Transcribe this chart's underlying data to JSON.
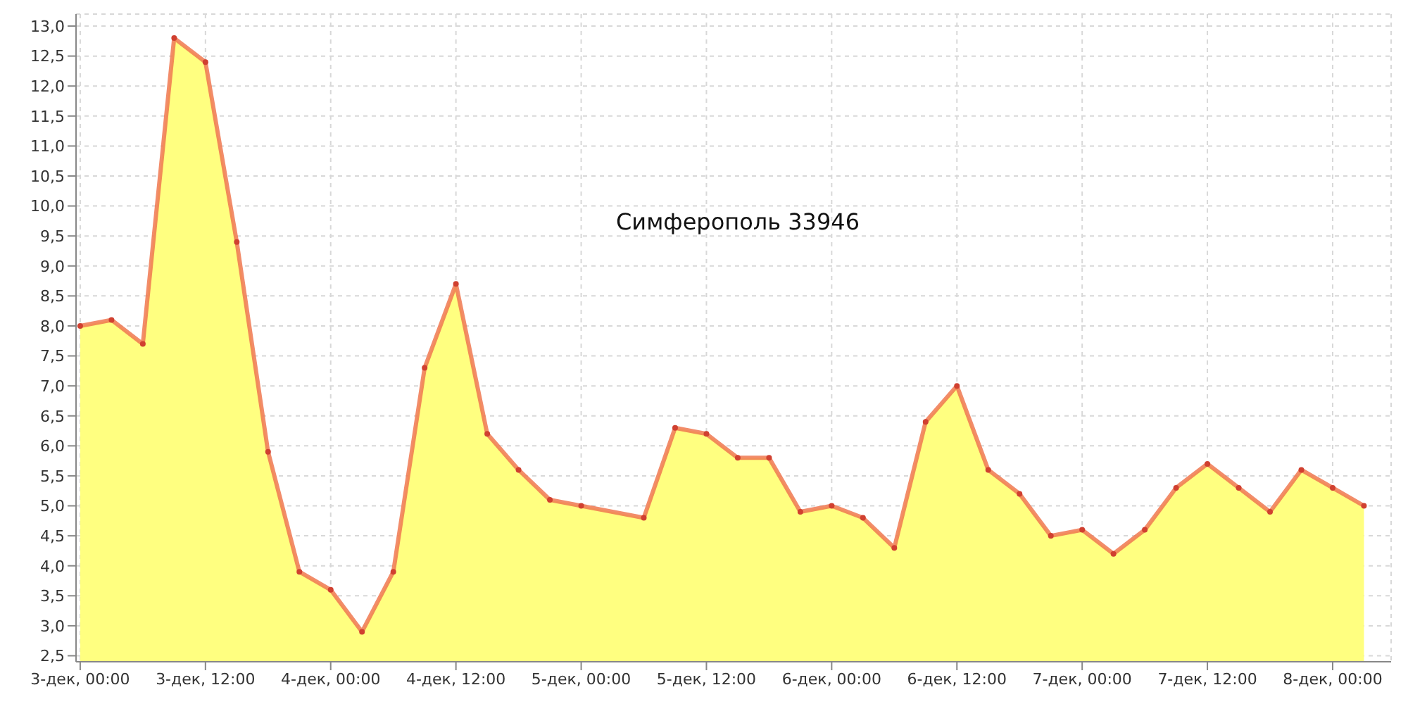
{
  "chart_data": {
    "type": "area",
    "title": "Симферополь 33946",
    "x": [
      "--12-03T00:00",
      "--12-03T03:00",
      "--12-03T06:00",
      "--12-03T09:00",
      "--12-03T12:00",
      "--12-03T15:00",
      "--12-03T18:00",
      "--12-03T21:00",
      "--12-04T00:00",
      "--12-04T03:00",
      "--12-04T06:00",
      "--12-04T09:00",
      "--12-04T12:00",
      "--12-04T15:00",
      "--12-04T18:00",
      "--12-04T21:00",
      "--12-05T00:00",
      "--12-05T06:00",
      "--12-05T09:00",
      "--12-05T12:00",
      "--12-05T15:00",
      "--12-05T18:00",
      "--12-05T21:00",
      "--12-06T00:00",
      "--12-06T03:00",
      "--12-06T06:00",
      "--12-06T09:00",
      "--12-06T12:00",
      "--12-06T15:00",
      "--12-06T18:00",
      "--12-06T21:00",
      "--12-07T00:00",
      "--12-07T03:00",
      "--12-07T06:00",
      "--12-07T09:00",
      "--12-07T12:00",
      "--12-07T15:00",
      "--12-07T18:00",
      "--12-07T21:00",
      "--12-08T00:00",
      "--12-08T03:00"
    ],
    "series": [
      {
        "color": "#f07850",
        "values": [
          8.0,
          8.1,
          7.7,
          12.8,
          12.4,
          9.4,
          5.9,
          3.9,
          3.6,
          2.9,
          3.9,
          7.3,
          8.7,
          6.2,
          5.6,
          5.1,
          5.0,
          4.8,
          6.3,
          6.2,
          5.8,
          5.8,
          4.9,
          5.0,
          4.8,
          4.3,
          6.4,
          7.0,
          5.6,
          5.2,
          4.5,
          4.6,
          4.2,
          4.6,
          5.3,
          5.7,
          5.3,
          4.9,
          5.6,
          5.3,
          5.0
        ]
      }
    ],
    "xlim": [
      "--12-02T23:36",
      "--12-08T05:36"
    ],
    "xticks": [
      {
        "value": "--12-03T00:00",
        "label": "3-дек, 00:00"
      },
      {
        "value": "--12-03T12:00",
        "label": "3-дек, 12:00"
      },
      {
        "value": "--12-04T00:00",
        "label": "4-дек, 00:00"
      },
      {
        "value": "--12-04T12:00",
        "label": "4-дек, 12:00"
      },
      {
        "value": "--12-05T00:00",
        "label": "5-дек, 00:00"
      },
      {
        "value": "--12-05T12:00",
        "label": "5-дек, 12:00"
      },
      {
        "value": "--12-06T00:00",
        "label": "6-дек, 00:00"
      },
      {
        "value": "--12-06T12:00",
        "label": "6-дек, 12:00"
      },
      {
        "value": "--12-07T00:00",
        "label": "7-дек, 00:00"
      },
      {
        "value": "--12-07T12:00",
        "label": "7-дек, 12:00"
      },
      {
        "value": "--12-08T00:00",
        "label": "8-дек, 00:00"
      }
    ],
    "ylim": [
      2.4,
      13.2
    ],
    "yticks": [
      {
        "value": 2.5,
        "label": "2,5"
      },
      {
        "value": 3,
        "label": "3,0"
      },
      {
        "value": 3.5,
        "label": "3,5"
      },
      {
        "value": 4,
        "label": "4,0"
      },
      {
        "value": 4.5,
        "label": "4,5"
      },
      {
        "value": 5,
        "label": "5,0"
      },
      {
        "value": 5.5,
        "label": "5,5"
      },
      {
        "value": 6,
        "label": "6,0"
      },
      {
        "value": 6.5,
        "label": "6,5"
      },
      {
        "value": 7,
        "label": "7,0"
      },
      {
        "value": 7.5,
        "label": "7,5"
      },
      {
        "value": 8,
        "label": "8,0"
      },
      {
        "value": 8.5,
        "label": "8,5"
      },
      {
        "value": 9,
        "label": "9,0"
      },
      {
        "value": 9.5,
        "label": "9,5"
      },
      {
        "value": 10,
        "label": "10,0"
      },
      {
        "value": 10.5,
        "label": "10,5"
      },
      {
        "value": 11,
        "label": "11,0"
      },
      {
        "value": 11.5,
        "label": "11,5"
      },
      {
        "value": 12,
        "label": "12,0"
      },
      {
        "value": 12.5,
        "label": "12,5"
      },
      {
        "value": 13,
        "label": "13,0"
      }
    ],
    "grid": true,
    "marker": "circle",
    "line_style": "solid"
  }
}
